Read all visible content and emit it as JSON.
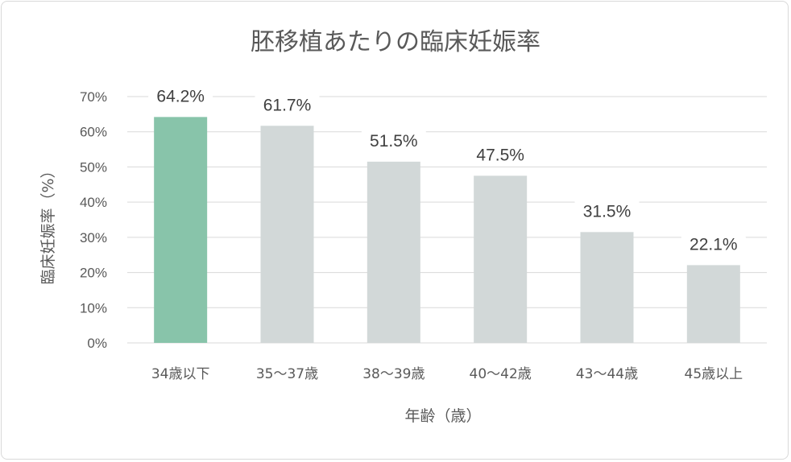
{
  "chart_data": {
    "type": "bar",
    "title": "胚移植あたりの臨床妊娠率",
    "xlabel": "年齢（歳）",
    "ylabel": "臨床妊娠率（%）",
    "categories": [
      "34歳以下",
      "35〜37歳",
      "38〜39歳",
      "40〜42歳",
      "43〜44歳",
      "45歳以上"
    ],
    "values": [
      64.2,
      61.7,
      51.5,
      47.5,
      31.5,
      22.1
    ],
    "data_labels": [
      "64.2%",
      "61.7%",
      "51.5%",
      "47.5%",
      "31.5%",
      "22.1%"
    ],
    "ylim": [
      0,
      70
    ],
    "yticks": [
      0,
      10,
      20,
      30,
      40,
      50,
      60,
      70
    ],
    "ytick_labels": [
      "0%",
      "10%",
      "20%",
      "30%",
      "40%",
      "50%",
      "60%",
      "70%"
    ],
    "grid": true,
    "legend": "none",
    "colors": {
      "highlight": "#88c4aa",
      "default": "#d2d8d8",
      "grid": "#d9d9d9",
      "text": "#595959"
    },
    "highlight_index": 0
  }
}
